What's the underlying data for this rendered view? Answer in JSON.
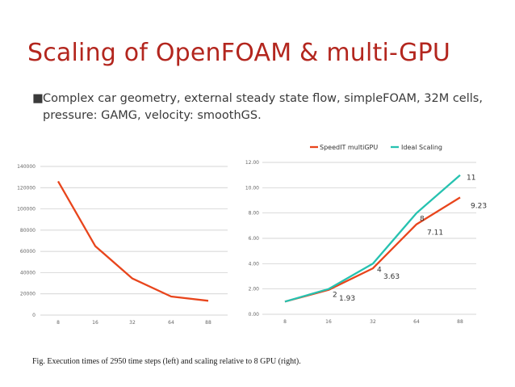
{
  "slide": {
    "title": "Scaling of OpenFOAM & multi-GPU",
    "bullet_mark": "■",
    "bullet": "Complex car geometry, external steady state flow, simpleFOAM, 32M cells, pressure: GAMG, velocity: smoothGS.",
    "caption": "Fig. Execution times of 2950 time steps (left) and scaling relative to 8 GPU (right)."
  },
  "colors": {
    "title": "#b3261e",
    "speedit": "#e8451c",
    "ideal": "#26c2b0",
    "grid": "#c8c8c8"
  },
  "chart_data": [
    {
      "type": "line",
      "categories": [
        "8",
        "16",
        "32",
        "64",
        "88"
      ],
      "ylim": [
        0,
        140000
      ],
      "yticks": [
        "0",
        "20000",
        "40000",
        "60000",
        "80000",
        "100000",
        "120000",
        "140000"
      ],
      "series": [
        {
          "values": [
            126000,
            65000,
            34500,
            17500,
            13500
          ]
        }
      ],
      "grid": true,
      "xlabel": "",
      "ylabel": "",
      "title": ""
    },
    {
      "type": "line",
      "categories": [
        "8",
        "16",
        "32",
        "64",
        "88"
      ],
      "ylim": [
        0,
        12
      ],
      "yticks": [
        "0.00",
        "2.00",
        "4.00",
        "6.00",
        "8.00",
        "10.00",
        "12.00"
      ],
      "legend_position": "top",
      "series": [
        {
          "name": "SpeedIT multiGPU",
          "values": [
            1,
            1.93,
            3.63,
            7.11,
            9.23
          ],
          "labels": [
            "",
            "1.93",
            "3.63",
            "7.11",
            "9.23"
          ]
        },
        {
          "name": "Ideal Scaling",
          "values": [
            1,
            2,
            4,
            8,
            11
          ],
          "labels": [
            "",
            "2",
            "4",
            "8",
            "11"
          ]
        }
      ],
      "grid": true,
      "xlabel": "",
      "ylabel": "",
      "title": ""
    }
  ]
}
